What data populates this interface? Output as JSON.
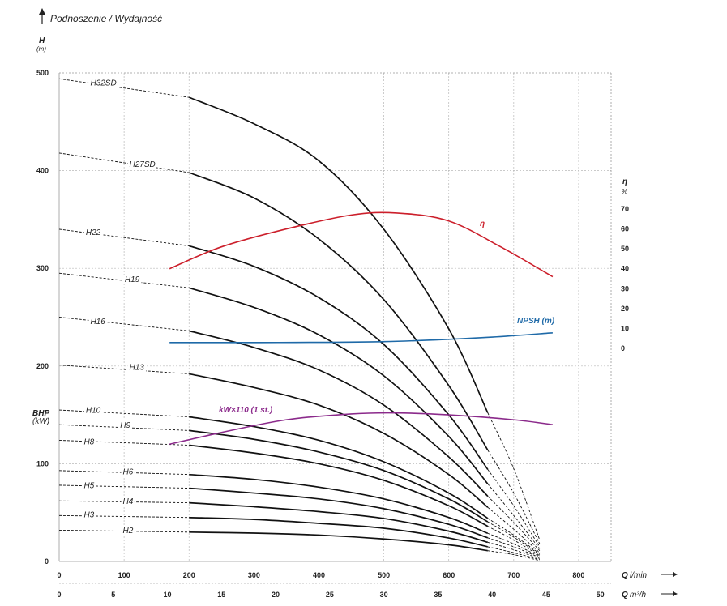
{
  "chart_data": {
    "type": "line",
    "title": "Podnoszenie / Wydajność",
    "y_axis": {
      "label": "H",
      "unit": "(m)",
      "range": [
        0,
        500
      ],
      "ticks": [
        "0",
        "100",
        "200",
        "300",
        "400",
        "500"
      ]
    },
    "y2_axis": {
      "label": "BHP",
      "unit": "(kW)"
    },
    "eta_axis": {
      "label": "η",
      "unit": "%",
      "range": [
        0,
        70
      ],
      "ticks": [
        "0",
        "10",
        "20",
        "30",
        "40",
        "50",
        "60",
        "70"
      ]
    },
    "x_axis_lmin": {
      "label": "Q",
      "unit": "l/min",
      "range": [
        0,
        850
      ],
      "ticks": [
        "0",
        "100",
        "200",
        "300",
        "400",
        "500",
        "600",
        "700",
        "800"
      ]
    },
    "x_axis_m3h": {
      "label": "Q",
      "unit": "m³/h",
      "range": [
        0,
        51
      ],
      "ticks": [
        "0",
        "5",
        "10",
        "15",
        "20",
        "25",
        "30",
        "35",
        "40",
        "45",
        "50"
      ]
    },
    "head_curves": [
      {
        "name": "H32SD",
        "q_end": 740,
        "points": [
          [
            0,
            494
          ],
          [
            200,
            475
          ],
          [
            300,
            448
          ],
          [
            400,
            410
          ],
          [
            500,
            340
          ],
          [
            600,
            238
          ],
          [
            700,
            95
          ],
          [
            740,
            22
          ]
        ]
      },
      {
        "name": "H27SD",
        "q_end": 740,
        "points": [
          [
            0,
            418
          ],
          [
            200,
            398
          ],
          [
            300,
            372
          ],
          [
            400,
            330
          ],
          [
            500,
            268
          ],
          [
            600,
            180
          ],
          [
            700,
            70
          ],
          [
            740,
            18
          ]
        ]
      },
      {
        "name": "H22",
        "q_end": 740,
        "points": [
          [
            0,
            340
          ],
          [
            200,
            323
          ],
          [
            300,
            302
          ],
          [
            400,
            270
          ],
          [
            500,
            222
          ],
          [
            600,
            150
          ],
          [
            700,
            57
          ],
          [
            740,
            15
          ]
        ]
      },
      {
        "name": "H19",
        "q_end": 740,
        "points": [
          [
            0,
            295
          ],
          [
            200,
            280
          ],
          [
            300,
            260
          ],
          [
            400,
            232
          ],
          [
            500,
            190
          ],
          [
            600,
            128
          ],
          [
            700,
            47
          ],
          [
            740,
            13
          ]
        ]
      },
      {
        "name": "H16",
        "q_end": 740,
        "points": [
          [
            0,
            250
          ],
          [
            200,
            236
          ],
          [
            300,
            219
          ],
          [
            400,
            196
          ],
          [
            500,
            160
          ],
          [
            600,
            107
          ],
          [
            700,
            40
          ],
          [
            740,
            11
          ]
        ]
      },
      {
        "name": "H13",
        "q_end": 740,
        "points": [
          [
            0,
            201
          ],
          [
            200,
            192
          ],
          [
            300,
            178
          ],
          [
            400,
            160
          ],
          [
            500,
            131
          ],
          [
            600,
            89
          ],
          [
            700,
            33
          ],
          [
            740,
            9
          ]
        ]
      },
      {
        "name": "H10",
        "q_end": 740,
        "points": [
          [
            0,
            155
          ],
          [
            200,
            148
          ],
          [
            300,
            138
          ],
          [
            400,
            124
          ],
          [
            500,
            102
          ],
          [
            600,
            70
          ],
          [
            700,
            27
          ],
          [
            740,
            8
          ]
        ]
      },
      {
        "name": "H9",
        "q_end": 740,
        "points": [
          [
            0,
            140
          ],
          [
            200,
            134
          ],
          [
            300,
            125
          ],
          [
            400,
            112
          ],
          [
            500,
            93
          ],
          [
            600,
            64
          ],
          [
            700,
            25
          ],
          [
            740,
            7
          ]
        ]
      },
      {
        "name": "H8",
        "q_end": 740,
        "points": [
          [
            0,
            124
          ],
          [
            200,
            119
          ],
          [
            300,
            111
          ],
          [
            400,
            100
          ],
          [
            500,
            83
          ],
          [
            600,
            57
          ],
          [
            700,
            22
          ],
          [
            740,
            6
          ]
        ]
      },
      {
        "name": "H6",
        "q_end": 740,
        "points": [
          [
            0,
            93
          ],
          [
            200,
            89
          ],
          [
            300,
            84
          ],
          [
            400,
            76
          ],
          [
            500,
            64
          ],
          [
            600,
            45
          ],
          [
            700,
            18
          ],
          [
            740,
            5
          ]
        ]
      },
      {
        "name": "H5",
        "q_end": 740,
        "points": [
          [
            0,
            78
          ],
          [
            200,
            75
          ],
          [
            300,
            70
          ],
          [
            400,
            64
          ],
          [
            500,
            54
          ],
          [
            600,
            38
          ],
          [
            700,
            15
          ],
          [
            740,
            4
          ]
        ]
      },
      {
        "name": "H4",
        "q_end": 740,
        "points": [
          [
            0,
            62
          ],
          [
            200,
            60
          ],
          [
            300,
            56
          ],
          [
            400,
            51
          ],
          [
            500,
            44
          ],
          [
            600,
            31
          ],
          [
            700,
            12
          ],
          [
            740,
            3
          ]
        ]
      },
      {
        "name": "H3",
        "q_end": 740,
        "points": [
          [
            0,
            47
          ],
          [
            200,
            45
          ],
          [
            300,
            43
          ],
          [
            400,
            39
          ],
          [
            500,
            34
          ],
          [
            600,
            24
          ],
          [
            700,
            9
          ],
          [
            740,
            2
          ]
        ]
      },
      {
        "name": "H2",
        "q_end": 740,
        "points": [
          [
            0,
            32
          ],
          [
            200,
            30
          ],
          [
            300,
            29
          ],
          [
            400,
            27
          ],
          [
            500,
            23
          ],
          [
            600,
            17
          ],
          [
            700,
            7
          ],
          [
            740,
            1
          ]
        ]
      }
    ],
    "curve_labels": [
      {
        "text": "H32SD",
        "q": 48,
        "h": 487
      },
      {
        "text": "H27SD",
        "q": 108,
        "h": 404
      },
      {
        "text": "H22",
        "q": 41,
        "h": 334
      },
      {
        "text": "H19",
        "q": 101,
        "h": 286
      },
      {
        "text": "H16",
        "q": 48,
        "h": 243
      },
      {
        "text": "H13",
        "q": 108,
        "h": 196
      },
      {
        "text": "H10",
        "q": 41,
        "h": 152
      },
      {
        "text": "H9",
        "q": 94,
        "h": 137
      },
      {
        "text": "H8",
        "q": 38,
        "h": 120
      },
      {
        "text": "H6",
        "q": 98,
        "h": 89
      },
      {
        "text": "H5",
        "q": 38,
        "h": 75
      },
      {
        "text": "H4",
        "q": 98,
        "h": 59
      },
      {
        "text": "H3",
        "q": 38,
        "h": 45
      },
      {
        "text": "H2",
        "q": 98,
        "h": 29
      }
    ],
    "efficiency": {
      "name": "η",
      "color": "#cc1f2b",
      "points": [
        [
          170,
          40
        ],
        [
          250,
          51
        ],
        [
          350,
          60
        ],
        [
          450,
          67
        ],
        [
          520,
          68
        ],
        [
          600,
          64
        ],
        [
          680,
          51
        ],
        [
          760,
          36
        ]
      ]
    },
    "npsh": {
      "name": "NPSH (m)",
      "color": "#1f6aa8",
      "points": [
        [
          170,
          224
        ],
        [
          300,
          224
        ],
        [
          500,
          225
        ],
        [
          650,
          229
        ],
        [
          760,
          234
        ]
      ]
    },
    "power": {
      "name": "kW×110 (1 st.)",
      "color": "#8b2a8b",
      "points": [
        [
          170,
          120
        ],
        [
          250,
          132
        ],
        [
          350,
          145
        ],
        [
          450,
          151
        ],
        [
          520,
          152
        ],
        [
          600,
          150
        ],
        [
          700,
          145
        ],
        [
          760,
          140
        ]
      ]
    },
    "grid": true
  }
}
